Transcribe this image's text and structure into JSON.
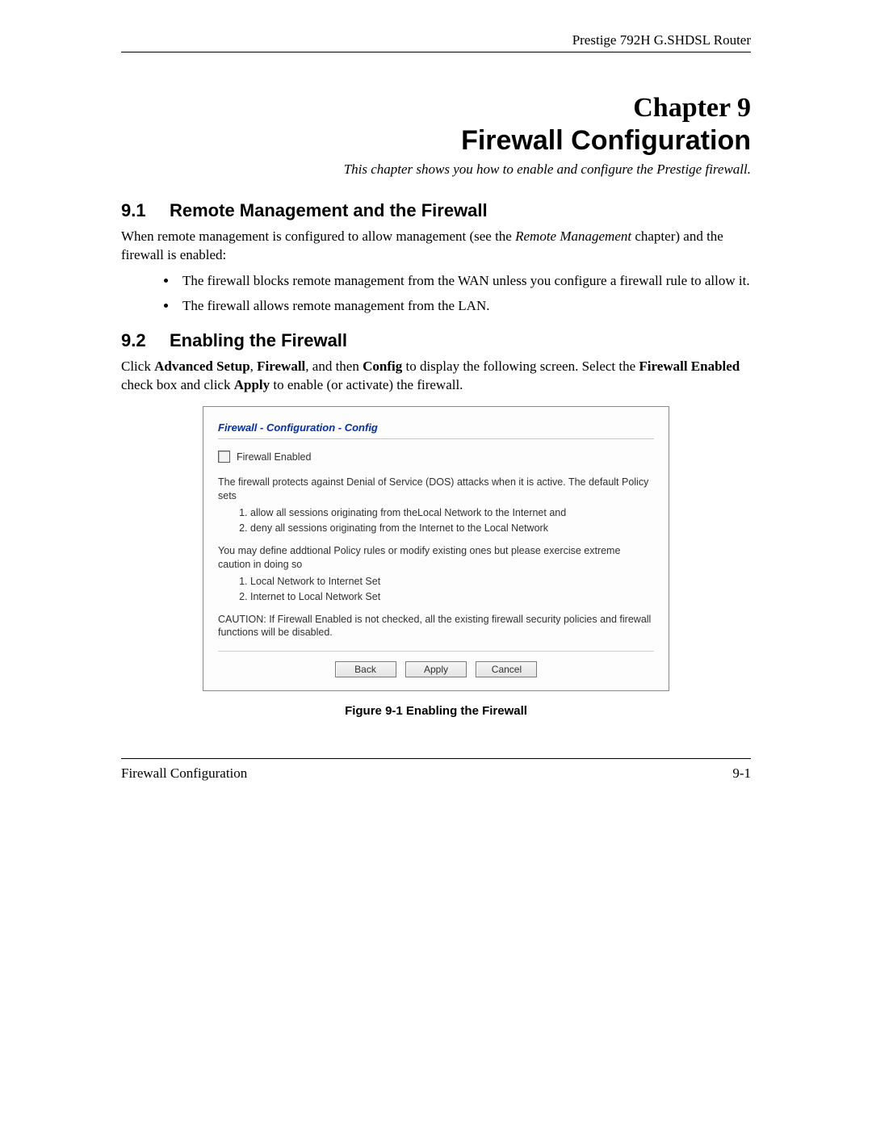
{
  "header": {
    "product": "Prestige 792H G.SHDSL Router"
  },
  "chapter": {
    "num": "Chapter 9",
    "title": "Firewall Configuration",
    "subtitle": "This chapter shows you how to enable and configure the Prestige firewall."
  },
  "s91": {
    "num": "9.1",
    "title": "Remote Management and the Firewall",
    "intro_a": "When remote management is configured to allow management (see the ",
    "intro_ital": "Remote Management",
    "intro_b": " chapter) and the firewall is enabled:",
    "bullet1": "The firewall blocks remote management from the WAN unless you configure a firewall rule to allow it.",
    "bullet2": "The firewall allows remote management from the LAN."
  },
  "s92": {
    "num": "9.2",
    "title": "Enabling the Firewall",
    "p_a": "Click ",
    "b1": "Advanced Setup",
    "p_b": ", ",
    "b2": "Firewall",
    "p_c": ", and then ",
    "b3": "Config",
    "p_d": " to display the following screen. Select the ",
    "b4": "Firewall Enabled",
    "p_e": " check box and click ",
    "b5": "Apply",
    "p_f": " to enable (or activate) the firewall."
  },
  "shot": {
    "title": "Firewall - Configuration - Config",
    "cb_label": "Firewall Enabled",
    "p1": "The firewall protects against Denial of Service (DOS) attacks when it is active. The default Policy sets",
    "ol1_1": "allow all sessions originating from theLocal Network to the Internet and",
    "ol1_2": "deny all sessions originating from the Internet to the Local Network",
    "p2": "You may define addtional Policy rules or modify existing ones but please exercise extreme caution in doing so",
    "ol2_1": "Local Network to Internet Set",
    "ol2_2": "Internet to Local Network Set",
    "p3": "CAUTION: If Firewall Enabled is not checked, all the existing firewall security policies and firewall functions will be disabled.",
    "btn_back": "Back",
    "btn_apply": "Apply",
    "btn_cancel": "Cancel"
  },
  "figcap": "Figure 9-1 Enabling the Firewall",
  "footer": {
    "left": "Firewall Configuration",
    "right": "9-1"
  }
}
